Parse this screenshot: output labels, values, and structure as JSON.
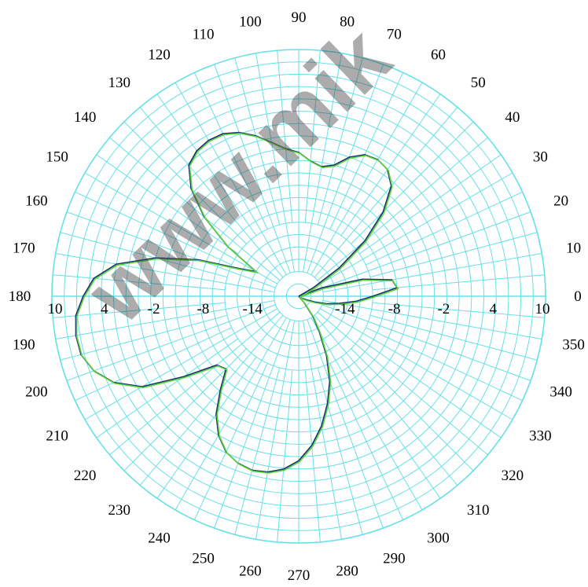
{
  "watermark": "www.mik",
  "chart_data": {
    "type": "polar-line",
    "title": "",
    "angle_ticks": [
      0,
      10,
      20,
      30,
      40,
      50,
      60,
      70,
      80,
      90,
      100,
      110,
      120,
      130,
      140,
      150,
      160,
      170,
      180,
      190,
      200,
      210,
      220,
      230,
      240,
      250,
      260,
      270,
      280,
      290,
      300,
      310,
      320,
      330,
      340,
      350
    ],
    "radial_tick_labels_right": [
      "-14",
      "-8",
      "-2",
      "4",
      "10"
    ],
    "radial_tick_labels_left": [
      "10",
      "4",
      "-2",
      "-8",
      "-14"
    ],
    "radial_range": [
      -20,
      10
    ],
    "grid": true,
    "grid_color": "#66e0e8",
    "series": [
      {
        "color": "#1c2a6e",
        "points": [
          [
            0,
            -11
          ],
          [
            5,
            -8
          ],
          [
            10,
            -8.5
          ],
          [
            15,
            -12
          ],
          [
            20,
            -17
          ],
          [
            25,
            -20
          ],
          [
            30,
            -18
          ],
          [
            35,
            -14
          ],
          [
            40,
            -9.5
          ],
          [
            45,
            -5.5
          ],
          [
            50,
            -2.5
          ],
          [
            55,
            -1.2
          ],
          [
            60,
            -0.8
          ],
          [
            65,
            -1
          ],
          [
            70,
            -2
          ],
          [
            75,
            -3.5
          ],
          [
            80,
            -4
          ],
          [
            85,
            -3.5
          ],
          [
            90,
            -2.5
          ],
          [
            95,
            -2
          ],
          [
            100,
            -1
          ],
          [
            105,
            0.2
          ],
          [
            110,
            1.2
          ],
          [
            115,
            1.8
          ],
          [
            120,
            1.9
          ],
          [
            125,
            1.6
          ],
          [
            130,
            0.8
          ],
          [
            135,
            -1.5
          ],
          [
            140,
            -5
          ],
          [
            145,
            -9.5
          ],
          [
            150,
            -14
          ],
          [
            155,
            -12
          ],
          [
            160,
            -7
          ],
          [
            165,
            -2
          ],
          [
            170,
            2.5
          ],
          [
            175,
            5
          ],
          [
            180,
            6.2
          ],
          [
            185,
            7.2
          ],
          [
            190,
            7.5
          ],
          [
            195,
            7.4
          ],
          [
            200,
            6.5
          ],
          [
            205,
            4.8
          ],
          [
            210,
            2
          ],
          [
            215,
            -3
          ],
          [
            220,
            -7
          ],
          [
            225,
            -7.5
          ],
          [
            230,
            -5.2
          ],
          [
            235,
            -2.5
          ],
          [
            240,
            -0.5
          ],
          [
            245,
            0.9
          ],
          [
            250,
            1.6
          ],
          [
            255,
            1.9
          ],
          [
            260,
            1.7
          ],
          [
            265,
            1.1
          ],
          [
            270,
            0
          ],
          [
            275,
            -1.8
          ],
          [
            280,
            -4
          ],
          [
            285,
            -6.5
          ],
          [
            290,
            -9
          ],
          [
            295,
            -12
          ],
          [
            300,
            -15
          ],
          [
            305,
            -17
          ],
          [
            310,
            -19
          ],
          [
            315,
            -20
          ],
          [
            320,
            -20
          ],
          [
            325,
            -20
          ],
          [
            330,
            -19.5
          ],
          [
            335,
            -19
          ],
          [
            340,
            -18
          ],
          [
            345,
            -16.5
          ],
          [
            350,
            -15
          ],
          [
            355,
            -13
          ],
          [
            360,
            -11
          ]
        ]
      },
      {
        "color": "#58d23a",
        "points": [
          [
            0,
            -11
          ],
          [
            5,
            -8
          ],
          [
            10,
            -8.5
          ],
          [
            15,
            -12
          ],
          [
            20,
            -17
          ],
          [
            25,
            -20
          ],
          [
            30,
            -18
          ],
          [
            35,
            -14
          ],
          [
            40,
            -9.5
          ],
          [
            45,
            -5.5
          ],
          [
            50,
            -2.5
          ],
          [
            55,
            -1.2
          ],
          [
            60,
            -0.8
          ],
          [
            65,
            -1
          ],
          [
            70,
            -2
          ],
          [
            75,
            -3.5
          ],
          [
            80,
            -4
          ],
          [
            85,
            -3.5
          ],
          [
            90,
            -2.5
          ],
          [
            95,
            -2
          ],
          [
            100,
            -1
          ],
          [
            105,
            0.2
          ],
          [
            110,
            1.2
          ],
          [
            115,
            1.8
          ],
          [
            120,
            1.9
          ],
          [
            125,
            1.6
          ],
          [
            130,
            0.8
          ],
          [
            135,
            -1.5
          ],
          [
            140,
            -5
          ],
          [
            145,
            -9.5
          ],
          [
            150,
            -14
          ],
          [
            155,
            -12
          ],
          [
            160,
            -7
          ],
          [
            165,
            -2
          ],
          [
            170,
            2.5
          ],
          [
            175,
            5
          ],
          [
            180,
            6.2
          ],
          [
            185,
            7.2
          ],
          [
            190,
            7.5
          ],
          [
            195,
            7.4
          ],
          [
            200,
            6.5
          ],
          [
            205,
            4.8
          ],
          [
            210,
            2
          ],
          [
            215,
            -3
          ],
          [
            220,
            -7
          ],
          [
            225,
            -7.5
          ],
          [
            230,
            -5.2
          ],
          [
            235,
            -2.5
          ],
          [
            240,
            -0.5
          ],
          [
            245,
            0.9
          ],
          [
            250,
            1.6
          ],
          [
            255,
            1.9
          ],
          [
            260,
            1.7
          ],
          [
            265,
            1.1
          ],
          [
            270,
            0
          ],
          [
            275,
            -1.8
          ],
          [
            280,
            -4
          ],
          [
            285,
            -6.5
          ],
          [
            290,
            -9
          ],
          [
            295,
            -12
          ],
          [
            300,
            -15
          ],
          [
            305,
            -17
          ],
          [
            310,
            -19
          ],
          [
            315,
            -20
          ],
          [
            320,
            -20
          ],
          [
            325,
            -20
          ],
          [
            330,
            -19.5
          ],
          [
            335,
            -19
          ],
          [
            340,
            -18
          ],
          [
            345,
            -16.5
          ],
          [
            350,
            -15
          ],
          [
            355,
            -13
          ],
          [
            360,
            -11
          ]
        ]
      }
    ]
  }
}
